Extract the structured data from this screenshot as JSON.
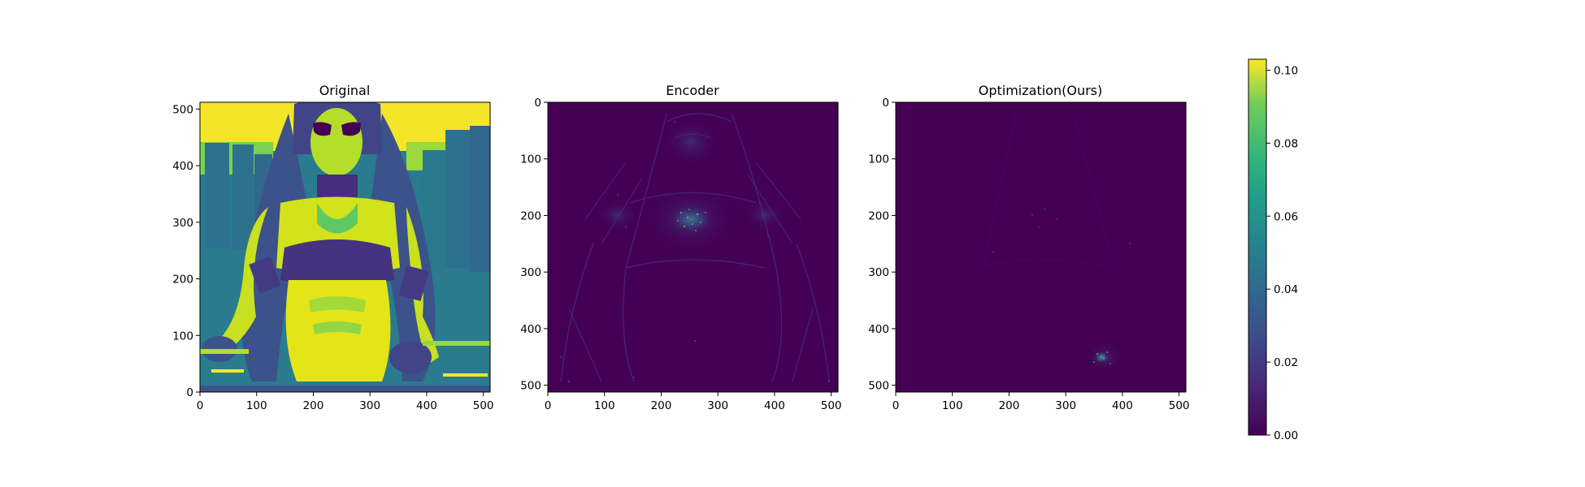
{
  "chart_data": {
    "type": "heatmap",
    "colormap": "viridis",
    "colorbar": {
      "min": 0.0,
      "max": 0.103,
      "ticks": [
        "0.00",
        "0.02",
        "0.04",
        "0.06",
        "0.08",
        "0.10"
      ],
      "tick_values": [
        0.0,
        0.02,
        0.04,
        0.06,
        0.08,
        0.1
      ]
    },
    "panels": [
      {
        "title": "Original",
        "content": "image",
        "x_range": [
          0,
          512
        ],
        "y_range": [
          512,
          0
        ],
        "x_ticks": [
          "0",
          "100",
          "200",
          "300",
          "400",
          "500"
        ],
        "y_ticks": [
          "0",
          "100",
          "200",
          "300",
          "400",
          "500"
        ]
      },
      {
        "title": "Encoder",
        "content": "error_map",
        "x_range": [
          0,
          512
        ],
        "y_range": [
          0,
          512
        ],
        "x_ticks": [
          "0",
          "100",
          "200",
          "300",
          "400",
          "500"
        ],
        "y_ticks": [
          "0",
          "100",
          "200",
          "300",
          "400",
          "500"
        ]
      },
      {
        "title": "Optimization(Ours)",
        "content": "error_map",
        "x_range": [
          0,
          512
        ],
        "y_range": [
          0,
          512
        ],
        "x_ticks": [
          "0",
          "100",
          "200",
          "300",
          "400",
          "500"
        ],
        "y_ticks": [
          "0",
          "100",
          "200",
          "300",
          "400",
          "500"
        ]
      }
    ],
    "colors": {
      "viridis_low": "#440154",
      "viridis_mid": "#21918c",
      "viridis_high": "#fde725"
    }
  }
}
